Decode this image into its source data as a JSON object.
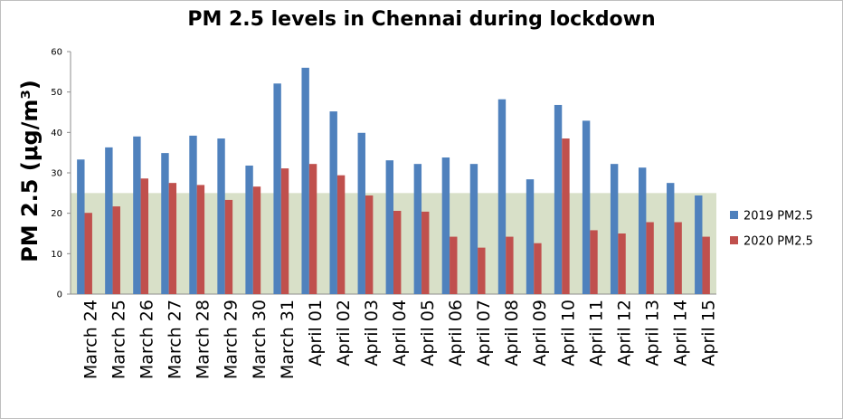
{
  "chart_data": {
    "type": "bar",
    "title": "PM 2.5 levels in Chennai during lockdown",
    "xlabel": "",
    "ylabel": "PM 2.5 (μg/m³)",
    "ylim": [
      0,
      60
    ],
    "yticks": [
      0,
      10,
      20,
      30,
      40,
      50,
      60
    ],
    "legend_position": "right",
    "threshold_band": {
      "from": 0,
      "to": 25,
      "color": "#d8e0c8"
    },
    "categories": [
      "March 24",
      "March 25",
      "March 26",
      "March 27",
      "March 28",
      "March 29",
      "March 30",
      "March 31",
      "April 01",
      "April 02",
      "April 03",
      "April 04",
      "April 05",
      "April 06",
      "April 07",
      "April 08",
      "April 09",
      "April 10",
      "April 11",
      "April 12",
      "April 13",
      "April 14",
      "April 15"
    ],
    "series": [
      {
        "name": "2019 PM2.5",
        "color": "#4f81bd",
        "values": [
          33.3,
          36.3,
          39,
          34.9,
          39.2,
          38.5,
          31.8,
          52.1,
          56,
          45.2,
          39.9,
          33.1,
          32.2,
          33.8,
          32.2,
          48.2,
          28.4,
          46.8,
          42.9,
          32.2,
          31.3,
          27.5,
          24.4
        ]
      },
      {
        "name": "2020 PM2.5",
        "color": "#c0504d",
        "values": [
          20.1,
          21.7,
          28.6,
          27.5,
          27,
          23.3,
          26.6,
          31.1,
          32.2,
          29.4,
          24.4,
          20.6,
          20.4,
          14.2,
          11.5,
          14.2,
          12.6,
          38.5,
          15.8,
          15,
          17.8,
          17.8,
          14.2
        ]
      }
    ]
  }
}
